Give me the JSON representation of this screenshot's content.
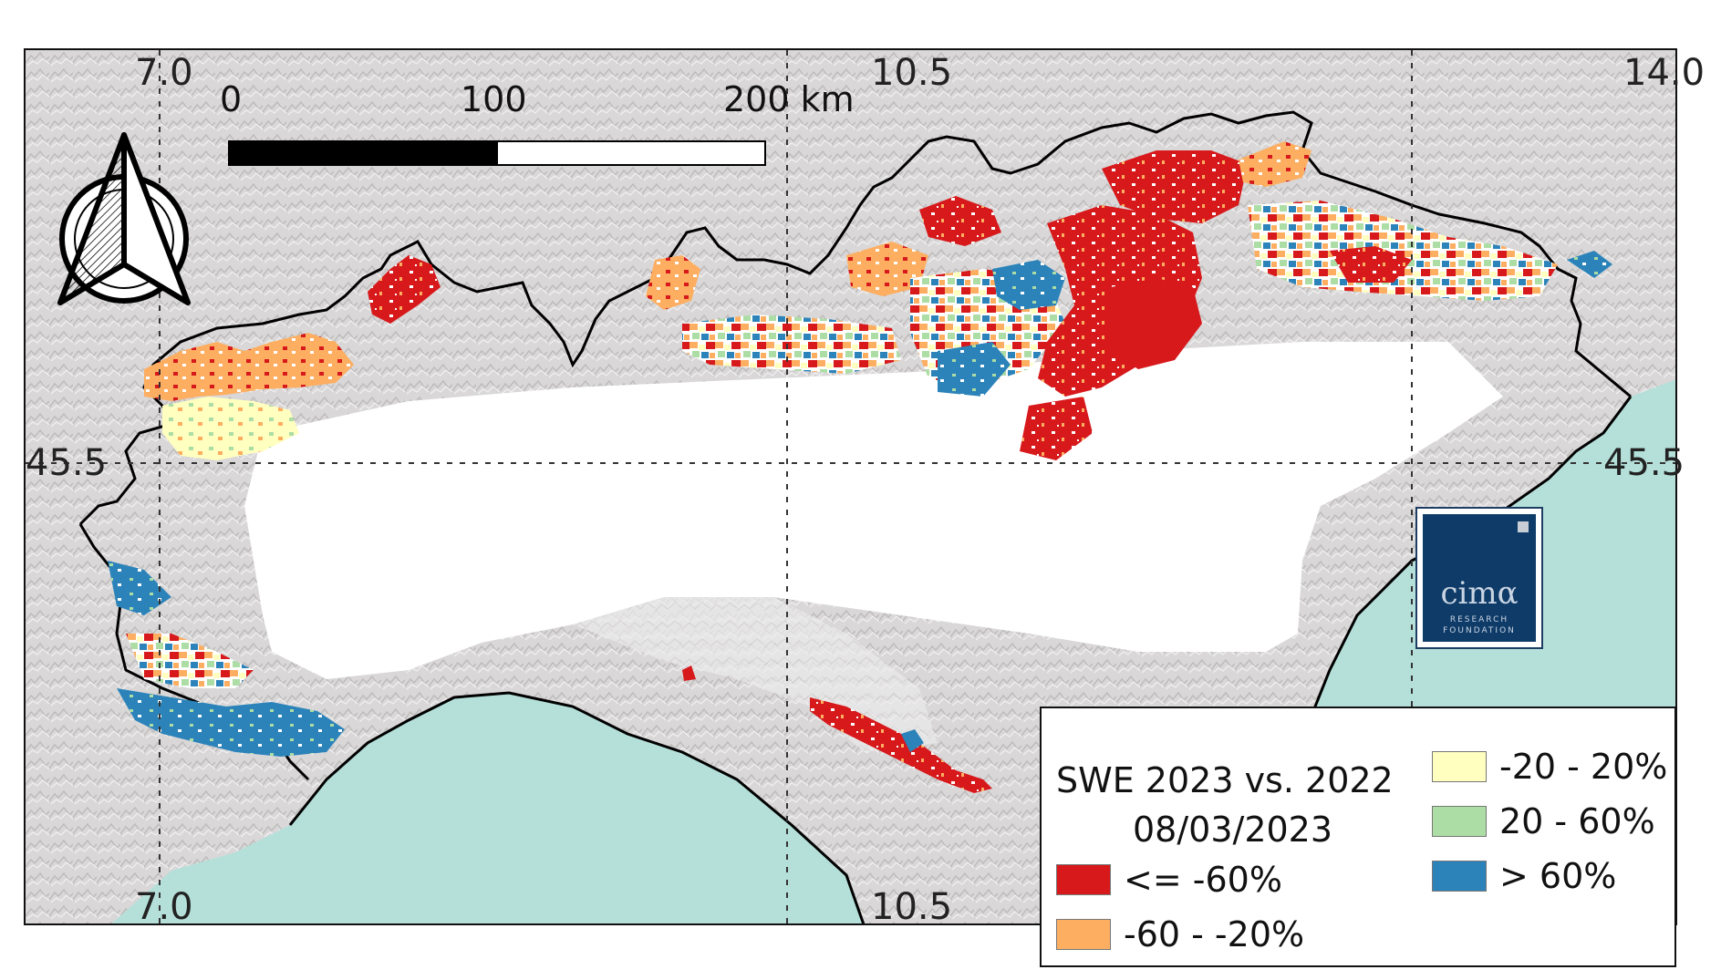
{
  "map": {
    "graticule": {
      "top": [
        "7.0",
        "10.5",
        "14.0"
      ],
      "bottom": [
        "7.0",
        "10.5"
      ],
      "left": "45.5",
      "right": "45.5"
    },
    "scale_bar": {
      "labels": [
        "0",
        "100",
        "200 km"
      ]
    },
    "north_arrow": {
      "icon": "north-arrow-icon"
    },
    "logo": {
      "brand": "cimα",
      "sub_line1": "RESEARCH",
      "sub_line2": "FOUNDATION"
    },
    "colors": {
      "sea": "#b5e0da",
      "relief": "#d9d7d7",
      "plain": "#ffffff",
      "border": "#000000"
    }
  },
  "legend": {
    "title": "SWE 2023 vs. 2022",
    "date": "08/03/2023",
    "classes": [
      {
        "label": "<= -60%",
        "color": "#d7191c"
      },
      {
        "label": "-60 - -20%",
        "color": "#fdae61"
      },
      {
        "label": "-20 - 20%",
        "color": "#ffffbf"
      },
      {
        "label": "20 - 60%",
        "color": "#abdda4"
      },
      {
        "label": "> 60%",
        "color": "#2b83ba"
      }
    ]
  }
}
